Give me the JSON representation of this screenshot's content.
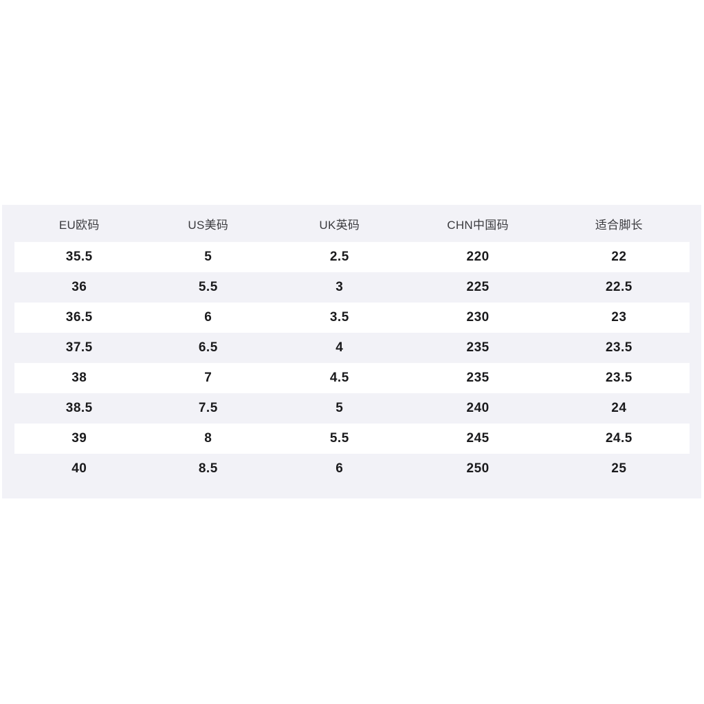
{
  "chart_data": {
    "type": "table",
    "columns": [
      "EU欧码",
      "US美码",
      "UK英码",
      "CHN中国码",
      "适合脚长"
    ],
    "rows": [
      [
        "35.5",
        "5",
        "2.5",
        "220",
        "22"
      ],
      [
        "36",
        "5.5",
        "3",
        "225",
        "22.5"
      ],
      [
        "36.5",
        "6",
        "3.5",
        "230",
        "23"
      ],
      [
        "37.5",
        "6.5",
        "4",
        "235",
        "23.5"
      ],
      [
        "38",
        "7",
        "4.5",
        "235",
        "23.5"
      ],
      [
        "38.5",
        "7.5",
        "5",
        "240",
        "24"
      ],
      [
        "39",
        "8",
        "5.5",
        "245",
        "24.5"
      ],
      [
        "40",
        "8.5",
        "6",
        "250",
        "25"
      ]
    ],
    "layout_hints": {
      "row_striping": "odd rows white, even rows panel gray",
      "alignment": "center"
    }
  },
  "colors": {
    "page_background": "#ffffff",
    "panel_background": "#f2f2f7",
    "stripe_row_background": "#ffffff",
    "header_text": "#3a3a3e",
    "cell_text": "#1a1a1c"
  }
}
